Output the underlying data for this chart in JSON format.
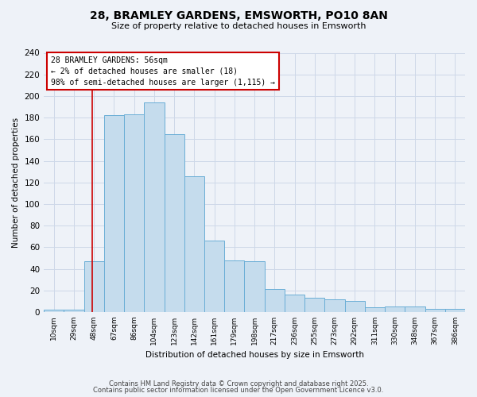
{
  "title": "28, BRAMLEY GARDENS, EMSWORTH, PO10 8AN",
  "subtitle": "Size of property relative to detached houses in Emsworth",
  "xlabel": "Distribution of detached houses by size in Emsworth",
  "ylabel": "Number of detached properties",
  "bar_labels": [
    "10sqm",
    "29sqm",
    "48sqm",
    "67sqm",
    "86sqm",
    "104sqm",
    "123sqm",
    "142sqm",
    "161sqm",
    "179sqm",
    "198sqm",
    "217sqm",
    "236sqm",
    "255sqm",
    "273sqm",
    "292sqm",
    "311sqm",
    "330sqm",
    "348sqm",
    "367sqm",
    "386sqm"
  ],
  "bar_values": [
    2,
    2,
    47,
    182,
    183,
    194,
    165,
    126,
    66,
    48,
    47,
    21,
    16,
    13,
    12,
    10,
    4,
    5,
    5,
    3,
    3
  ],
  "bar_color": "#c5dced",
  "bar_edge_color": "#6aaed6",
  "ylim": [
    0,
    240
  ],
  "yticks": [
    0,
    20,
    40,
    60,
    80,
    100,
    120,
    140,
    160,
    180,
    200,
    220,
    240
  ],
  "property_line_label": "28 BRAMLEY GARDENS: 56sqm",
  "annotation_line1": "← 2% of detached houses are smaller (18)",
  "annotation_line2": "98% of semi-detached houses are larger (1,115) →",
  "annotation_box_color": "#ffffff",
  "annotation_box_edge": "#cc0000",
  "vline_color": "#cc0000",
  "grid_color": "#cdd8e8",
  "bg_color": "#eef2f8",
  "footer1": "Contains HM Land Registry data © Crown copyright and database right 2025.",
  "footer2": "Contains public sector information licensed under the Open Government Licence v3.0.",
  "bin_width": 19
}
